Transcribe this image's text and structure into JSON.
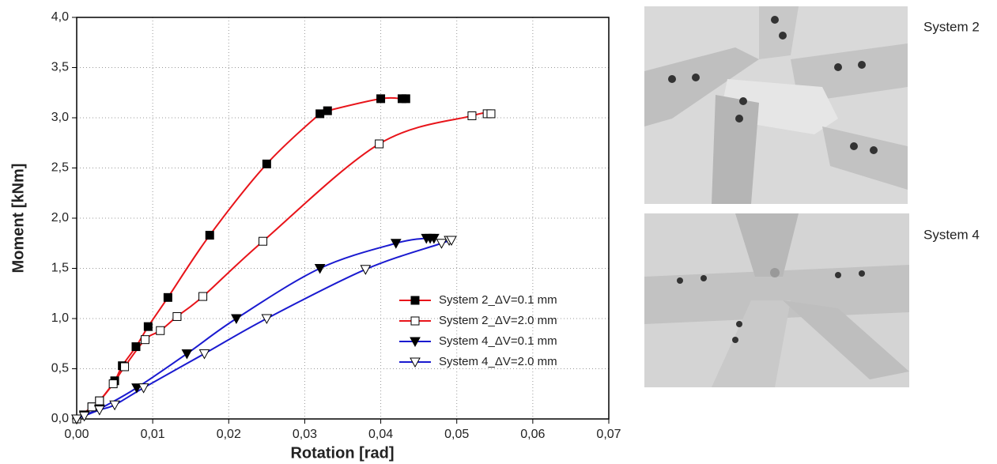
{
  "chart_data": {
    "type": "line",
    "xlabel": "Rotation [rad]",
    "ylabel": "Moment [kNm]",
    "xlim": [
      0,
      0.07
    ],
    "ylim": [
      0,
      4
    ],
    "xticks": [
      {
        "value": 0,
        "label": "0,00"
      },
      {
        "value": 0.01,
        "label": "0,01"
      },
      {
        "value": 0.02,
        "label": "0,02"
      },
      {
        "value": 0.03,
        "label": "0,03"
      },
      {
        "value": 0.04,
        "label": "0,04"
      },
      {
        "value": 0.05,
        "label": "0,05"
      },
      {
        "value": 0.06,
        "label": "0,06"
      },
      {
        "value": 0.07,
        "label": "0,07"
      }
    ],
    "yticks": [
      {
        "value": 0,
        "label": "0,0"
      },
      {
        "value": 0.5,
        "label": "0,5"
      },
      {
        "value": 1,
        "label": "1,0"
      },
      {
        "value": 1.5,
        "label": "1,5"
      },
      {
        "value": 2,
        "label": "2,0"
      },
      {
        "value": 2.5,
        "label": "2,5"
      },
      {
        "value": 3,
        "label": "3,0"
      },
      {
        "value": 3.5,
        "label": "3,5"
      },
      {
        "value": 4,
        "label": "4,0"
      }
    ],
    "grid": true,
    "legend": "lower right",
    "series": [
      {
        "name": "System 2_ΔV=0.1 mm",
        "color": "#e8141a",
        "marker": "square-filled",
        "x": [
          0,
          0.002,
          0.003,
          0.005,
          0.006,
          0.0078,
          0.0094,
          0.012,
          0.0175,
          0.025,
          0.032,
          0.033,
          0.04,
          0.0428,
          0.0433
        ],
        "values": [
          0,
          0.12,
          0.18,
          0.38,
          0.53,
          0.72,
          0.92,
          1.21,
          1.83,
          2.54,
          3.04,
          3.07,
          3.19,
          3.19,
          3.19
        ]
      },
      {
        "name": "System 2_ΔV=2.0 mm",
        "color": "#e8141a",
        "marker": "square-open",
        "x": [
          0,
          0.002,
          0.003,
          0.0048,
          0.0063,
          0.009,
          0.011,
          0.0132,
          0.0166,
          0.0245,
          0.0398,
          0.052,
          0.054,
          0.0545
        ],
        "values": [
          0,
          0.12,
          0.18,
          0.35,
          0.52,
          0.79,
          0.88,
          1.02,
          1.22,
          1.77,
          2.74,
          3.02,
          3.04,
          3.04
        ]
      },
      {
        "name": "System 4_ΔV=0.1 mm",
        "color": "#1a1ad0",
        "marker": "triangle-filled",
        "x": [
          0,
          0.001,
          0.003,
          0.0079,
          0.0145,
          0.021,
          0.032,
          0.042,
          0.046,
          0.0465,
          0.047
        ],
        "values": [
          0,
          0.04,
          0.1,
          0.31,
          0.65,
          1.0,
          1.5,
          1.75,
          1.8,
          1.8,
          1.8
        ]
      },
      {
        "name": "System 4_ΔV=2.0 mm",
        "color": "#1a1ad0",
        "marker": "triangle-open",
        "x": [
          0,
          0.001,
          0.003,
          0.005,
          0.0088,
          0.0168,
          0.025,
          0.038,
          0.048,
          0.049,
          0.0493
        ],
        "values": [
          0,
          0.03,
          0.09,
          0.14,
          0.31,
          0.65,
          1.0,
          1.49,
          1.75,
          1.78,
          1.78
        ]
      }
    ]
  },
  "panels": [
    {
      "label": "System 2"
    },
    {
      "label": "System 4"
    }
  ]
}
